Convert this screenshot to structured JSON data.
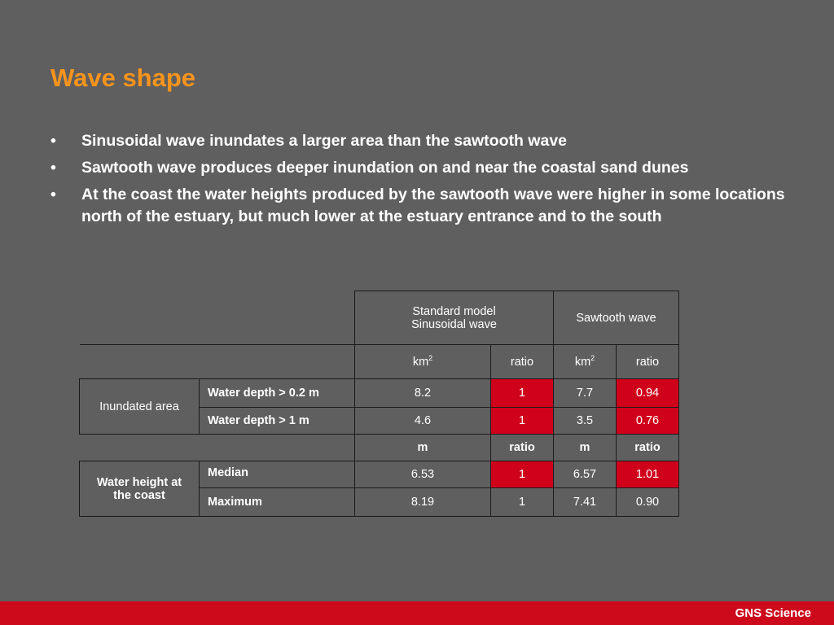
{
  "title": "Wave shape",
  "bullet_marker": "•",
  "bullets": [
    "Sinusoidal wave inundates a larger area than the sawtooth wave",
    "Sawtooth wave produces deeper inundation on and near the coastal sand dunes",
    "At the coast the water heights produced by the sawtooth wave were higher in some locations north of the estuary, but much lower at the estuary entrance and to the south"
  ],
  "table": {
    "col_headers": {
      "standard_line1": "Standard model",
      "standard_line2": "Sinusoidal wave",
      "sawtooth": "Sawtooth wave"
    },
    "unit_row_area": {
      "unit1": "km",
      "unit1_sup": "2",
      "ratio1": "ratio",
      "unit2": "km",
      "unit2_sup": "2",
      "ratio2": "ratio"
    },
    "inundated": {
      "group_label": "Inundated area",
      "rows": [
        {
          "label": "Water depth > 0.2 m",
          "std_value": "8.2",
          "std_ratio": "1",
          "saw_value": "7.7",
          "saw_ratio": "0.94"
        },
        {
          "label": "Water depth > 1 m",
          "std_value": "4.6",
          "std_ratio": "1",
          "saw_value": "3.5",
          "saw_ratio": "0.76"
        }
      ]
    },
    "unit_row_height": {
      "unit1": "m",
      "ratio1": "ratio",
      "unit2": "m",
      "ratio2": "ratio"
    },
    "water_height": {
      "group_label_line1": "Water height at",
      "group_label_line2": "the coast",
      "rows": [
        {
          "label": "Median",
          "std_value": "6.53",
          "std_ratio": "1",
          "saw_value": "6.57",
          "saw_ratio": "1.01"
        },
        {
          "label": "Maximum",
          "std_value": "8.19",
          "std_ratio": "1",
          "saw_value": "7.41",
          "saw_ratio": "0.90"
        }
      ]
    },
    "highlight_color": "#d0021b"
  },
  "footer": {
    "brand": "GNS Science",
    "bar_color": "#cc0a1c"
  },
  "colors": {
    "background": "#5f5f5f",
    "title": "#f7941d",
    "text": "#ffffff"
  }
}
